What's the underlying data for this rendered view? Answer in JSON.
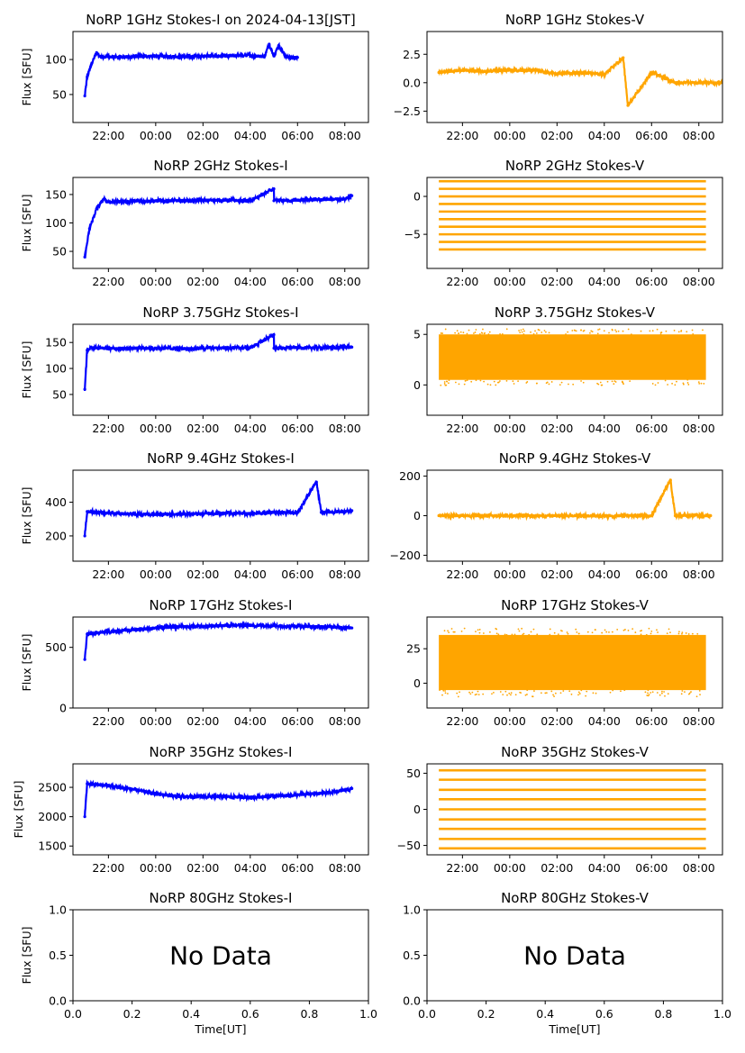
{
  "figure": {
    "xlabel": "Time[UT]",
    "ylabel": "Flux [SFU]",
    "i_color": "#0000ff",
    "v_color": "#ffa500"
  },
  "chart_data": [
    {
      "type": "scatter",
      "title": "NoRP 1GHz Stokes-I on 2024-04-13[JST]",
      "ylabel": "Flux [SFU]",
      "xlabel": "",
      "color": "#0000ff",
      "xlim": [
        20.5,
        33.0
      ],
      "ylim": [
        10,
        140
      ],
      "yticks": [
        50,
        100
      ],
      "xticks": [
        "22:00",
        "00:00",
        "02:00",
        "04:00",
        "06:00",
        "08:00"
      ],
      "xtick_hours": [
        22,
        24,
        26,
        28,
        30,
        32
      ],
      "x": [
        21.0,
        21.1,
        21.3,
        21.5,
        21.7,
        22.0,
        23.0,
        24.0,
        25.0,
        26.0,
        27.0,
        28.0,
        28.6,
        28.8,
        29.0,
        29.2,
        29.5,
        30.0
      ],
      "y": [
        48,
        75,
        95,
        110,
        103,
        104,
        104,
        105,
        104,
        105,
        105,
        106,
        104,
        122,
        105,
        120,
        104,
        103
      ],
      "series_range": [
        21.0,
        30.0
      ]
    },
    {
      "type": "scatter",
      "title": "NoRP 1GHz Stokes-V",
      "ylabel": "",
      "xlabel": "",
      "color": "#ffa500",
      "xlim": [
        20.5,
        33.0
      ],
      "ylim": [
        -3.5,
        4.5
      ],
      "yticks": [
        -2.5,
        0.0,
        2.5
      ],
      "ytick_labels": [
        "−2.5",
        "0.0",
        "2.5"
      ],
      "xticks": [
        "22:00",
        "00:00",
        "02:00",
        "04:00",
        "06:00",
        "08:00"
      ],
      "xtick_hours": [
        22,
        24,
        26,
        28,
        30,
        32
      ],
      "x": [
        21.0,
        22.0,
        23.0,
        24.0,
        25.0,
        26.0,
        27.0,
        28.0,
        28.8,
        29.0,
        30.0,
        31.0,
        32.0,
        33.0
      ],
      "y": [
        0.9,
        1.1,
        1.0,
        1.1,
        1.1,
        0.8,
        0.9,
        0.7,
        2.2,
        -2.0,
        0.9,
        0.0,
        0.0,
        0.0
      ],
      "series_range": [
        21.0,
        33.0
      ]
    },
    {
      "type": "scatter",
      "title": "NoRP 2GHz Stokes-I",
      "ylabel": "Flux [SFU]",
      "xlabel": "",
      "color": "#0000ff",
      "xlim": [
        20.5,
        33.0
      ],
      "ylim": [
        20,
        180
      ],
      "yticks": [
        50,
        100,
        150
      ],
      "xticks": [
        "22:00",
        "00:00",
        "02:00",
        "04:00",
        "06:00",
        "08:00"
      ],
      "xtick_hours": [
        22,
        24,
        26,
        28,
        30,
        32
      ],
      "x": [
        21.0,
        21.2,
        21.5,
        21.8,
        22.0,
        23.0,
        24.0,
        25.0,
        26.0,
        27.0,
        28.0,
        29.0,
        29.0,
        30.0,
        31.0,
        32.0,
        32.3
      ],
      "y": [
        40,
        90,
        125,
        142,
        137,
        138,
        139,
        139,
        140,
        140,
        139,
        160,
        139,
        140,
        141,
        142,
        148
      ],
      "series_range": [
        21.0,
        32.3
      ]
    },
    {
      "type": "scatter",
      "title": "NoRP 2GHz Stokes-V",
      "ylabel": "",
      "xlabel": "",
      "color": "#ffa500",
      "xlim": [
        20.5,
        33.0
      ],
      "ylim": [
        -9.5,
        2.5
      ],
      "yticks": [
        -5,
        0
      ],
      "ytick_labels": [
        "−5",
        "0"
      ],
      "xticks": [
        "22:00",
        "00:00",
        "02:00",
        "04:00",
        "06:00",
        "08:00"
      ],
      "xtick_hours": [
        22,
        24,
        26,
        28,
        30,
        32
      ],
      "levels": [
        2,
        1,
        0,
        -1,
        -2,
        -3,
        -4,
        -5,
        -6,
        -7
      ],
      "series_range": [
        21.0,
        32.3
      ]
    },
    {
      "type": "scatter",
      "title": "NoRP 3.75GHz Stokes-I",
      "ylabel": "Flux [SFU]",
      "xlabel": "",
      "color": "#0000ff",
      "xlim": [
        20.5,
        33.0
      ],
      "ylim": [
        10,
        185
      ],
      "yticks": [
        50,
        100,
        150
      ],
      "xticks": [
        "22:00",
        "00:00",
        "02:00",
        "04:00",
        "06:00",
        "08:00"
      ],
      "xtick_hours": [
        22,
        24,
        26,
        28,
        30,
        32
      ],
      "x": [
        21.0,
        21.1,
        21.3,
        22.0,
        23.0,
        24.0,
        25.0,
        26.0,
        27.0,
        28.0,
        29.0,
        29.0,
        30.0,
        31.0,
        32.0,
        32.3
      ],
      "y": [
        60,
        135,
        140,
        138,
        139,
        139,
        138,
        139,
        140,
        140,
        165,
        139,
        140,
        140,
        141,
        141
      ],
      "series_range": [
        21.0,
        32.3
      ]
    },
    {
      "type": "scatter",
      "title": "NoRP 3.75GHz Stokes-V",
      "ylabel": "",
      "xlabel": "",
      "color": "#ffa500",
      "xlim": [
        20.5,
        33.0
      ],
      "ylim": [
        -3.0,
        6.0
      ],
      "yticks": [
        0,
        5
      ],
      "ytick_labels": [
        "0",
        "5"
      ],
      "xticks": [
        "22:00",
        "00:00",
        "02:00",
        "04:00",
        "06:00",
        "08:00"
      ],
      "xtick_hours": [
        22,
        24,
        26,
        28,
        30,
        32
      ],
      "band": [
        0.5,
        5.0
      ],
      "series_range": [
        21.0,
        32.3
      ]
    },
    {
      "type": "scatter",
      "title": "NoRP 9.4GHz Stokes-I",
      "ylabel": "Flux [SFU]",
      "xlabel": "",
      "color": "#0000ff",
      "xlim": [
        20.5,
        33.0
      ],
      "ylim": [
        50,
        590
      ],
      "yticks": [
        200,
        400
      ],
      "xticks": [
        "22:00",
        "00:00",
        "02:00",
        "04:00",
        "06:00",
        "08:00"
      ],
      "xtick_hours": [
        22,
        24,
        26,
        28,
        30,
        32
      ],
      "x": [
        21.0,
        21.1,
        22.0,
        23.0,
        24.0,
        25.0,
        26.0,
        27.0,
        28.0,
        29.0,
        30.0,
        30.8,
        31.0,
        32.0,
        32.3
      ],
      "y": [
        200,
        345,
        335,
        330,
        328,
        330,
        332,
        335,
        333,
        340,
        338,
        520,
        340,
        345,
        350
      ],
      "series_range": [
        21.0,
        32.3
      ]
    },
    {
      "type": "scatter",
      "title": "NoRP 9.4GHz Stokes-V",
      "ylabel": "",
      "xlabel": "",
      "color": "#ffa500",
      "xlim": [
        20.5,
        33.0
      ],
      "ylim": [
        -230,
        230
      ],
      "yticks": [
        -200,
        0,
        200
      ],
      "ytick_labels": [
        "−200",
        "0",
        "200"
      ],
      "xticks": [
        "22:00",
        "00:00",
        "02:00",
        "04:00",
        "06:00",
        "08:00"
      ],
      "xtick_hours": [
        22,
        24,
        26,
        28,
        30,
        32
      ],
      "x": [
        21.0,
        22.0,
        23.0,
        24.0,
        25.0,
        26.0,
        27.0,
        28.0,
        29.0,
        30.0,
        30.8,
        31.0,
        32.0,
        32.5
      ],
      "y": [
        0,
        0,
        0,
        0,
        0,
        0,
        0,
        0,
        0,
        0,
        180,
        0,
        0,
        0
      ],
      "series_range": [
        21.0,
        32.5
      ]
    },
    {
      "type": "scatter",
      "title": "NoRP 17GHz Stokes-I",
      "ylabel": "Flux [SFU]",
      "xlabel": "",
      "color": "#0000ff",
      "xlim": [
        20.5,
        33.0
      ],
      "ylim": [
        0,
        750
      ],
      "yticks": [
        0,
        500
      ],
      "xticks": [
        "22:00",
        "00:00",
        "02:00",
        "04:00",
        "06:00",
        "08:00"
      ],
      "xtick_hours": [
        22,
        24,
        26,
        28,
        30,
        32
      ],
      "x": [
        21.0,
        21.1,
        22.0,
        23.0,
        24.0,
        25.0,
        26.0,
        27.0,
        28.0,
        29.0,
        30.0,
        31.0,
        32.0,
        32.3
      ],
      "y": [
        400,
        610,
        630,
        645,
        660,
        670,
        675,
        680,
        680,
        678,
        675,
        670,
        665,
        660
      ],
      "series_range": [
        21.0,
        32.3
      ]
    },
    {
      "type": "scatter",
      "title": "NoRP 17GHz Stokes-V",
      "ylabel": "",
      "xlabel": "",
      "color": "#ffa500",
      "xlim": [
        20.5,
        33.0
      ],
      "ylim": [
        -18,
        48
      ],
      "yticks": [
        0,
        25
      ],
      "ytick_labels": [
        "0",
        "25"
      ],
      "xticks": [
        "22:00",
        "00:00",
        "02:00",
        "04:00",
        "06:00",
        "08:00"
      ],
      "xtick_hours": [
        22,
        24,
        26,
        28,
        30,
        32
      ],
      "band": [
        -5,
        35
      ],
      "series_range": [
        21.0,
        32.3
      ]
    },
    {
      "type": "scatter",
      "title": "NoRP 35GHz Stokes-I",
      "ylabel": "Flux [SFU]",
      "xlabel": "",
      "color": "#0000ff",
      "xlim": [
        20.5,
        33.0
      ],
      "ylim": [
        1350,
        2900
      ],
      "yticks": [
        1500,
        2000,
        2500
      ],
      "xticks": [
        "22:00",
        "00:00",
        "02:00",
        "04:00",
        "06:00",
        "08:00"
      ],
      "xtick_hours": [
        22,
        24,
        26,
        28,
        30,
        32
      ],
      "x": [
        21.0,
        21.1,
        22.0,
        23.0,
        24.0,
        25.0,
        26.0,
        27.0,
        28.0,
        29.0,
        30.0,
        31.0,
        32.0,
        32.3
      ],
      "y": [
        2000,
        2560,
        2530,
        2470,
        2390,
        2340,
        2340,
        2340,
        2330,
        2350,
        2370,
        2400,
        2450,
        2480
      ],
      "series_range": [
        21.0,
        32.3
      ]
    },
    {
      "type": "scatter",
      "title": "NoRP 35GHz Stokes-V",
      "ylabel": "",
      "xlabel": "",
      "color": "#ffa500",
      "xlim": [
        20.5,
        33.0
      ],
      "ylim": [
        -63,
        63
      ],
      "yticks": [
        -50,
        0,
        50
      ],
      "ytick_labels": [
        "−50",
        "0",
        "50"
      ],
      "xticks": [
        "22:00",
        "00:00",
        "02:00",
        "04:00",
        "06:00",
        "08:00"
      ],
      "xtick_hours": [
        22,
        24,
        26,
        28,
        30,
        32
      ],
      "levels": [
        54,
        41,
        27,
        14,
        0,
        -14,
        -27,
        -41,
        -54
      ],
      "series_range": [
        21.0,
        32.3
      ]
    },
    {
      "type": "scatter",
      "title": "NoRP 80GHz Stokes-I",
      "ylabel": "Flux [SFU]",
      "xlabel": "Time[UT]",
      "color": "#0000ff",
      "xlim": [
        0.0,
        1.0
      ],
      "ylim": [
        0.0,
        1.0
      ],
      "yticks": [
        0.0,
        0.5,
        1.0
      ],
      "ytick_labels": [
        "0.0",
        "0.5",
        "1.0"
      ],
      "xticks": [
        "0.0",
        "0.2",
        "0.4",
        "0.6",
        "0.8",
        "1.0"
      ],
      "xtick_values": [
        0.0,
        0.2,
        0.4,
        0.6,
        0.8,
        1.0
      ],
      "annotation": "No Data"
    },
    {
      "type": "scatter",
      "title": "NoRP 80GHz Stokes-V",
      "ylabel": "",
      "xlabel": "Time[UT]",
      "color": "#ffa500",
      "xlim": [
        0.0,
        1.0
      ],
      "ylim": [
        0.0,
        1.0
      ],
      "yticks": [
        0.0,
        0.5,
        1.0
      ],
      "ytick_labels": [
        "0.0",
        "0.5",
        "1.0"
      ],
      "xticks": [
        "0.0",
        "0.2",
        "0.4",
        "0.6",
        "0.8",
        "1.0"
      ],
      "xtick_values": [
        0.0,
        0.2,
        0.4,
        0.6,
        0.8,
        1.0
      ],
      "annotation": "No Data"
    }
  ]
}
